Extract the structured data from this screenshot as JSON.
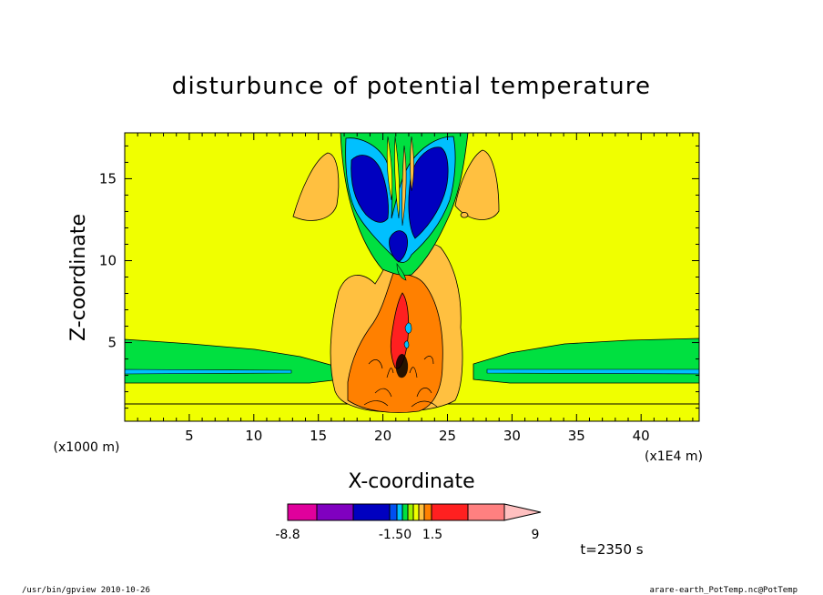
{
  "chart_data": {
    "type": "contour",
    "title": "disturbunce of potential temperature",
    "xlabel": "X-coordinate",
    "ylabel": "Z-coordinate",
    "x_unit_left": "(x1000 m)",
    "x_unit_right": "(x1E4 m)",
    "xlim": [
      0,
      44.5
    ],
    "ylim": [
      0.2,
      17.8
    ],
    "x_ticks": [
      5,
      10,
      15,
      20,
      25,
      30,
      35,
      40
    ],
    "y_ticks": [
      5,
      10,
      15
    ],
    "grid": false,
    "time_label": "t=2350 s",
    "colorbar": {
      "min_label": "-8.8",
      "mid_labels": [
        "-1.50",
        "1.5"
      ],
      "max_label": "9",
      "segments": [
        "#e0009c",
        "#8000c0",
        "#0000c0",
        "#0050f0",
        "#00c0ff",
        "#00e040",
        "#a0f000",
        "#f0ff00",
        "#ffc040",
        "#ff8000",
        "#ff2020",
        "#ff8080",
        "#ffc0c0"
      ]
    },
    "field_colors": {
      "background": "#f0ff00",
      "light_orange": "#ffc040",
      "orange": "#ff8000",
      "green": "#00e040",
      "cyan": "#00c0ff",
      "blue": "#0000c0",
      "red": "#ff2020"
    }
  },
  "footer": {
    "left": "/usr/bin/gpview   2010-10-26",
    "right": "arare-earth_PotTemp.nc@PotTemp"
  }
}
